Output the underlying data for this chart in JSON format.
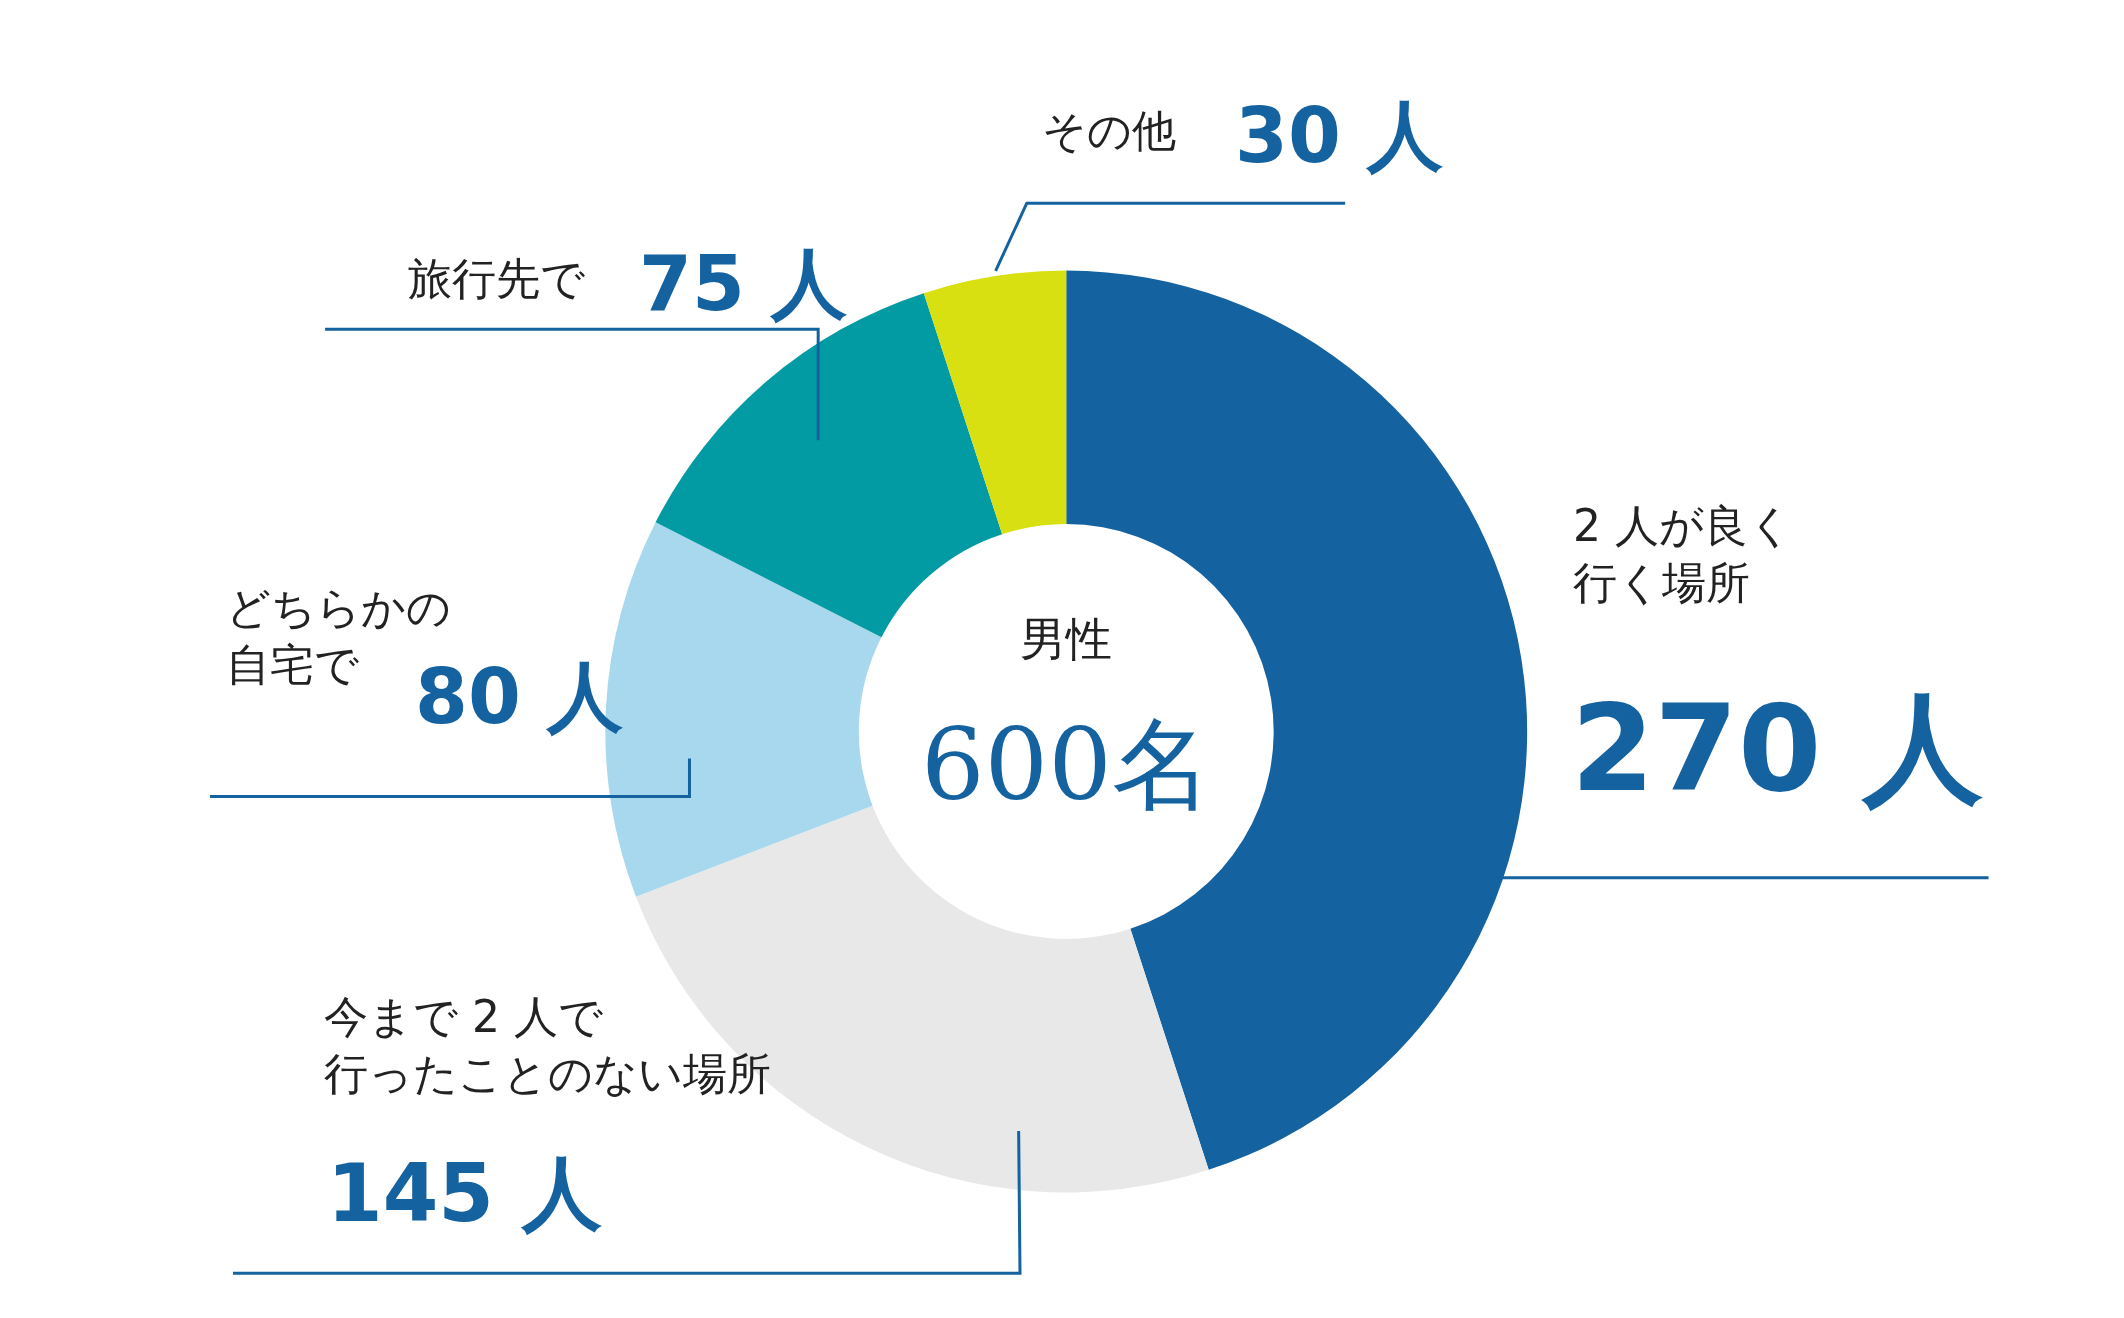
{
  "chart_data": {
    "type": "donut",
    "categories": [
      "2 人が良く行く場所",
      "今まで 2 人で行ったことのない場所",
      "どちらかの自宅で",
      "旅行先で",
      "その他"
    ],
    "values": [
      270,
      145,
      80,
      75,
      30
    ],
    "value_labels": [
      "270 人",
      "145 人",
      "80 人",
      "75 人",
      "30 人"
    ],
    "colors": [
      "#1562a0",
      "#e8e8e8",
      "#a8d8ee",
      "#039ba3",
      "#d8e012"
    ],
    "annotations": [
      "男性",
      "600名"
    ],
    "legend": false
  }
}
